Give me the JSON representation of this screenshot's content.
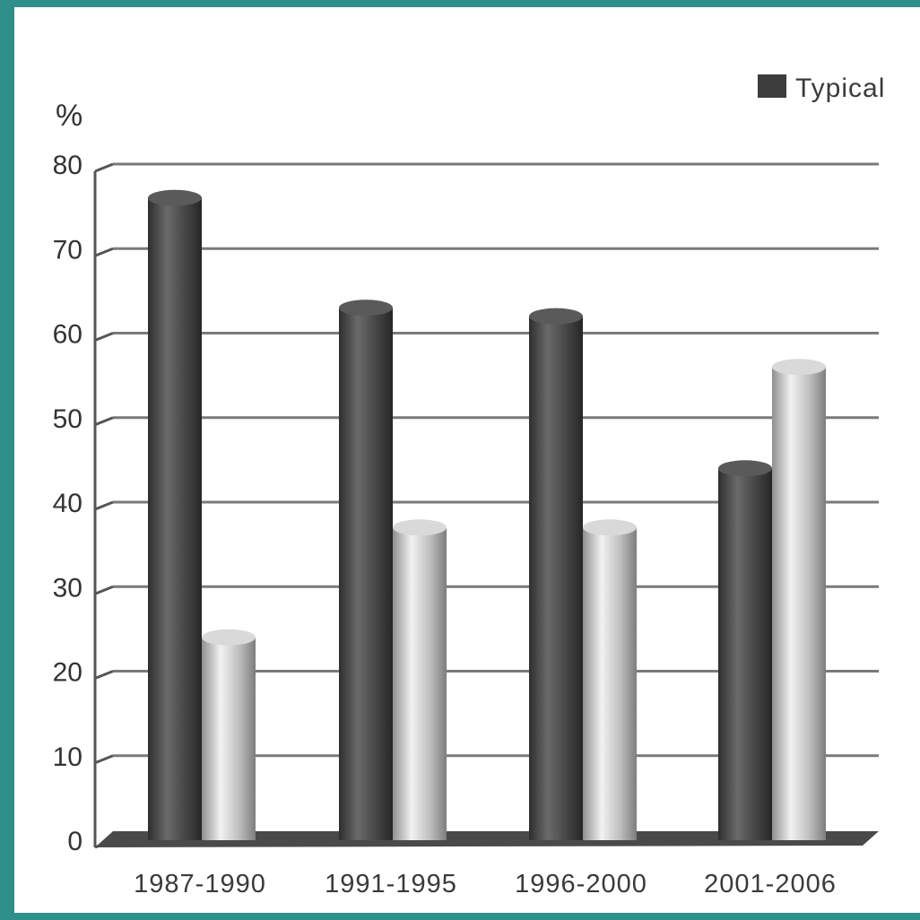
{
  "chart_data": {
    "type": "bar",
    "ylabel": "%",
    "ylim": [
      0,
      80
    ],
    "yticks": [
      "0",
      "10",
      "20",
      "30",
      "40",
      "50",
      "60",
      "70",
      "80"
    ],
    "categories": [
      "1987-1990",
      "1991-1995",
      "1996-2000",
      "2001-2006"
    ],
    "series": [
      {
        "name": "Typical",
        "values": [
          76,
          63,
          62,
          44
        ]
      },
      {
        "values": [
          24,
          37,
          37,
          56
        ]
      }
    ],
    "legend": {
      "position": "top-right",
      "entries": [
        "Typical"
      ]
    },
    "grid": true,
    "style": "3d-cylinder",
    "colors": {
      "series_0": "#4a4a4a",
      "series_1": "#c8c8c8",
      "background": "#ffffff",
      "border": "#2f8f89"
    }
  }
}
